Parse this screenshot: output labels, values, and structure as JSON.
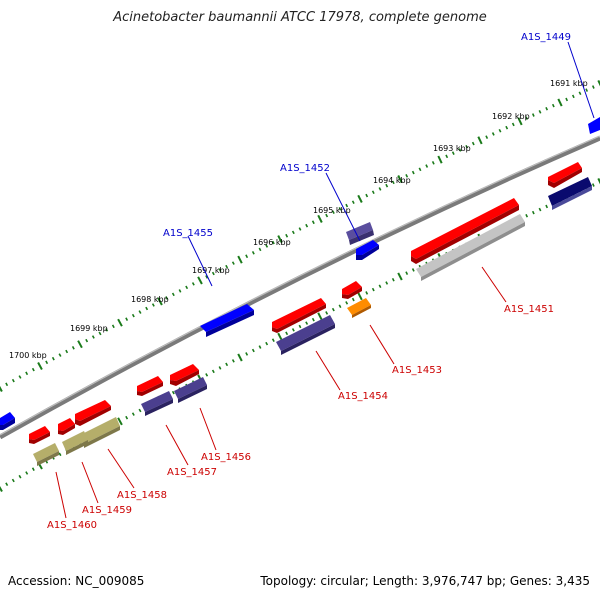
{
  "title": "Acinetobacter baumannii ATCC 17978, complete genome",
  "footer": {
    "accession": "Accession: NC_009085",
    "summary": "Topology: circular; Length: 3,976,747 bp; Genes: 3,435"
  },
  "scale_labels": [
    "1691 kbp",
    "1692 kbp",
    "1693 kbp",
    "1694 kbp",
    "1695 kbp",
    "1696 kbp",
    "1697 kbp",
    "1698 kbp",
    "1699 kbp",
    "1700 kbp"
  ],
  "gene_labels": [
    {
      "text": "A1S_1449",
      "strand": "forward"
    },
    {
      "text": "A1S_1452",
      "strand": "forward"
    },
    {
      "text": "A1S_1455",
      "strand": "forward"
    },
    {
      "text": "A1S_1451",
      "strand": "reverse"
    },
    {
      "text": "A1S_1453",
      "strand": "reverse"
    },
    {
      "text": "A1S_1454",
      "strand": "reverse"
    },
    {
      "text": "A1S_1456",
      "strand": "reverse"
    },
    {
      "text": "A1S_1457",
      "strand": "reverse"
    },
    {
      "text": "A1S_1458",
      "strand": "reverse"
    },
    {
      "text": "A1S_1459",
      "strand": "reverse"
    },
    {
      "text": "A1S_1460",
      "strand": "reverse"
    }
  ],
  "colors": {
    "forward_label": "#0000cc",
    "reverse_label": "#cc0000",
    "cds_forward": "#0000ff",
    "cds_reverse": "#ff0000",
    "gene_purple": "#4b3f8f",
    "gene_navy": "#0a0a6e",
    "gene_gray": "#b8b8b8",
    "gene_olive": "#b5ae6a",
    "gene_orange": "#ff8c00",
    "backbone": "#808080",
    "tick": "#1a7a1a"
  }
}
